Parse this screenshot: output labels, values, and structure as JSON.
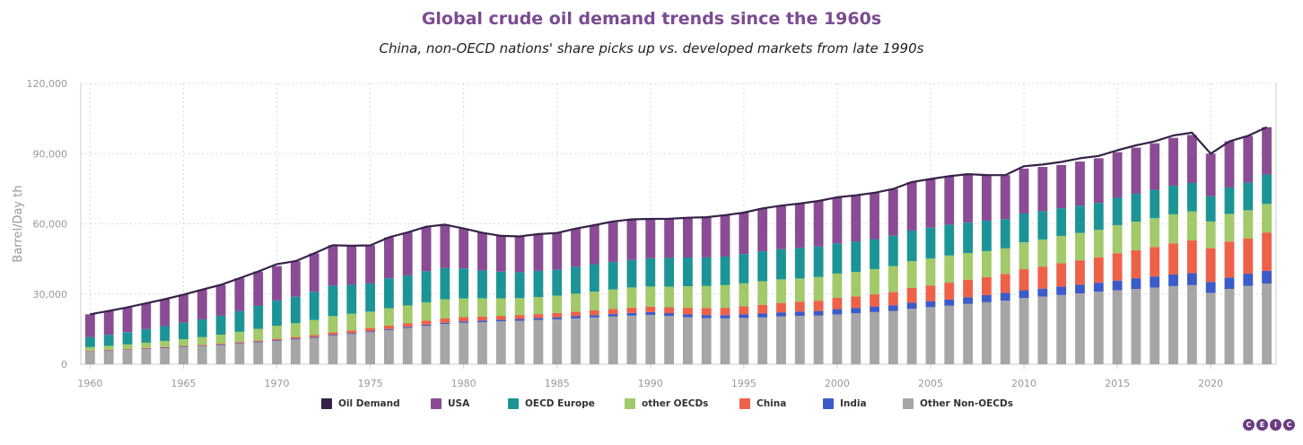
{
  "chart_data": {
    "type": "bar",
    "title": "Global crude oil demand trends since the 1960s",
    "subtitle": "China, non-OECD nations' share picks up vs. developed markets from late 1990s",
    "ylabel": "Barrel/Day th",
    "xlabel": "",
    "ylim": [
      0,
      120000
    ],
    "y_ticks": [
      0,
      30000,
      60000,
      90000,
      120000
    ],
    "y_tick_labels": [
      "0",
      "30,000",
      "60,000",
      "90,000",
      "120,000"
    ],
    "x_tick_labels": [
      "1960",
      "1965",
      "1970",
      "1975",
      "1980",
      "1985",
      "1990",
      "1995",
      "2000",
      "2005",
      "2010",
      "2015",
      "2020"
    ],
    "stacked": true,
    "grid": true,
    "legend_position": "bottom",
    "categories": [
      1960,
      1961,
      1962,
      1963,
      1964,
      1965,
      1966,
      1967,
      1968,
      1969,
      1970,
      1971,
      1972,
      1973,
      1974,
      1975,
      1976,
      1977,
      1978,
      1979,
      1980,
      1981,
      1982,
      1983,
      1984,
      1985,
      1986,
      1987,
      1988,
      1989,
      1990,
      1991,
      1992,
      1993,
      1994,
      1995,
      1996,
      1997,
      1998,
      1999,
      2000,
      2001,
      2002,
      2003,
      2004,
      2005,
      2006,
      2007,
      2008,
      2009,
      2010,
      2011,
      2012,
      2013,
      2014,
      2015,
      2016,
      2017,
      2018,
      2019,
      2020,
      2021,
      2022,
      2023
    ],
    "series": [
      {
        "name": "Other Non-OECDs",
        "color": "#a6a6a6",
        "values": [
          5500,
          5800,
          6100,
          6500,
          6900,
          7300,
          7700,
          8200,
          8800,
          9400,
          10000,
          10600,
          11300,
          12200,
          12900,
          13700,
          14600,
          15500,
          16400,
          17200,
          17700,
          18000,
          18300,
          18600,
          18900,
          19200,
          19600,
          20000,
          20400,
          20800,
          21100,
          20600,
          20100,
          19700,
          19600,
          19800,
          20000,
          20400,
          20700,
          20800,
          21300,
          21800,
          22300,
          22800,
          23700,
          24400,
          25000,
          25800,
          26500,
          27200,
          28300,
          28900,
          29600,
          30300,
          31000,
          31600,
          32200,
          32800,
          33400,
          33800,
          30500,
          32200,
          33500,
          34500
        ]
      },
      {
        "name": "India",
        "color": "#3b5bc9",
        "values": [
          150,
          160,
          170,
          180,
          200,
          220,
          240,
          260,
          280,
          300,
          320,
          340,
          360,
          390,
          410,
          430,
          450,
          480,
          510,
          540,
          640,
          680,
          720,
          760,
          810,
          860,
          920,
          980,
          1040,
          1120,
          1200,
          1240,
          1300,
          1330,
          1400,
          1580,
          1680,
          1780,
          1850,
          1970,
          2260,
          2290,
          2370,
          2430,
          2550,
          2570,
          2660,
          2840,
          3070,
          3310,
          3320,
          3430,
          3650,
          3720,
          3840,
          4150,
          4560,
          4720,
          4960,
          5150,
          4700,
          4850,
          5200,
          5400
        ]
      },
      {
        "name": "China",
        "color": "#ee6149",
        "values": [
          200,
          220,
          230,
          250,
          280,
          320,
          360,
          380,
          400,
          440,
          560,
          720,
          820,
          1000,
          1150,
          1350,
          1480,
          1550,
          1760,
          1830,
          1790,
          1720,
          1660,
          1690,
          1720,
          1830,
          1940,
          2060,
          2200,
          2300,
          2320,
          2520,
          2720,
          3020,
          3110,
          3400,
          3700,
          4000,
          4200,
          4400,
          4800,
          4900,
          5200,
          5600,
          6400,
          6700,
          7200,
          7500,
          7700,
          8100,
          9000,
          9400,
          9900,
          10400,
          10900,
          11700,
          12000,
          12600,
          13300,
          14000,
          14400,
          15400,
          15100,
          16400
        ]
      },
      {
        "name": "other OECDs",
        "color": "#a2c96a",
        "values": [
          1500,
          1700,
          2000,
          2300,
          2600,
          2900,
          3300,
          3800,
          4400,
          5000,
          5600,
          5900,
          6400,
          7000,
          7100,
          7000,
          7400,
          7600,
          7800,
          8200,
          8000,
          7800,
          7500,
          7200,
          7300,
          7400,
          7700,
          8000,
          8300,
          8600,
          8600,
          8800,
          9200,
          9400,
          9700,
          9800,
          10100,
          10100,
          9900,
          10100,
          10400,
          10500,
          10800,
          11100,
          11400,
          11500,
          11600,
          11400,
          11100,
          10900,
          11500,
          11600,
          11700,
          11700,
          11700,
          12000,
          12200,
          12300,
          12400,
          12400,
          11400,
          11800,
          12000,
          12200
        ]
      },
      {
        "name": "OECD Europe",
        "color": "#1c9495",
        "values": [
          4200,
          4700,
          5200,
          5800,
          6300,
          7000,
          7600,
          8100,
          8900,
          9800,
          10800,
          11300,
          12100,
          13000,
          12400,
          12000,
          12800,
          12800,
          13300,
          13400,
          12800,
          11900,
          11400,
          11100,
          11200,
          11100,
          11500,
          11700,
          11800,
          11800,
          12100,
          12300,
          12300,
          12200,
          12200,
          12500,
          12800,
          12900,
          13100,
          13000,
          12900,
          13000,
          12800,
          13000,
          13100,
          13200,
          13200,
          13000,
          13000,
          12500,
          12300,
          12100,
          11800,
          11600,
          11500,
          11700,
          11900,
          12100,
          12200,
          12100,
          10800,
          11300,
          11800,
          12600
        ]
      },
      {
        "name": "USA",
        "color": "#8a4c94",
        "values": [
          9800,
          10200,
          10600,
          11000,
          11500,
          12000,
          12700,
          13200,
          14000,
          14700,
          14700,
          15200,
          16400,
          17300,
          16700,
          16300,
          17500,
          18400,
          18800,
          18500,
          17100,
          16100,
          15300,
          15300,
          15700,
          15700,
          16300,
          16700,
          17300,
          17300,
          17000,
          16700,
          17000,
          17200,
          17700,
          17700,
          18300,
          18600,
          18900,
          19500,
          19700,
          19700,
          19800,
          20000,
          20700,
          20800,
          20700,
          20700,
          19500,
          18800,
          19200,
          18900,
          18500,
          18900,
          19100,
          19500,
          19700,
          19900,
          20500,
          20500,
          18200,
          19700,
          20000,
          20200
        ]
      },
      {
        "name": "Oil Demand",
        "color": "#352347",
        "type": "line",
        "values": [
          21350,
          22780,
          24300,
          26030,
          27780,
          29760,
          31900,
          33940,
          36780,
          39640,
          42780,
          44060,
          47380,
          50890,
          50660,
          50780,
          54210,
          56330,
          58770,
          59670,
          57990,
          56200,
          54880,
          54650,
          55630,
          56090,
          57960,
          59440,
          61040,
          61920,
          62120,
          62160,
          62620,
          62850,
          63710,
          64780,
          66580,
          67780,
          68650,
          69770,
          71360,
          72190,
          73270,
          74930,
          77850,
          79170,
          80360,
          81240,
          80870,
          80810,
          84620,
          85330,
          86450,
          88030,
          89040,
          91450,
          93560,
          95220,
          97760,
          98950,
          90000,
          95250,
          97600,
          101300
        ]
      }
    ]
  }
}
